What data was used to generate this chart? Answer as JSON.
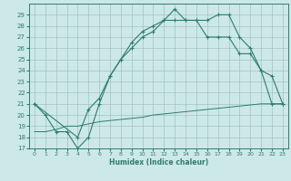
{
  "line1_x": [
    0,
    1,
    2,
    3,
    4,
    5,
    6,
    7,
    8,
    9,
    10,
    11,
    12,
    13,
    14,
    15,
    16,
    17,
    18,
    19,
    20,
    21,
    22,
    23
  ],
  "line1_y": [
    21,
    20,
    18.5,
    18.5,
    17,
    18,
    21,
    23.5,
    25,
    26.5,
    27.5,
    28.0,
    28.5,
    29.5,
    28.5,
    28.5,
    28.5,
    29,
    29,
    27.0,
    26,
    24,
    21,
    21
  ],
  "line2_x": [
    0,
    4,
    5,
    6,
    7,
    8,
    9,
    10,
    11,
    12,
    13,
    14,
    15,
    16,
    17,
    18,
    19,
    20,
    21,
    22,
    23
  ],
  "line2_y": [
    21,
    18,
    20.5,
    21.5,
    23.5,
    25,
    26,
    27,
    27.5,
    28.5,
    28.5,
    28.5,
    28.5,
    27,
    27,
    27,
    25.5,
    25.5,
    24,
    23.5,
    21
  ],
  "line3_x": [
    0,
    1,
    2,
    3,
    4,
    5,
    6,
    7,
    8,
    9,
    10,
    11,
    12,
    13,
    14,
    15,
    16,
    17,
    18,
    19,
    20,
    21,
    22,
    23
  ],
  "line3_y": [
    18.5,
    18.5,
    18.7,
    19.0,
    19.0,
    19.2,
    19.4,
    19.5,
    19.6,
    19.7,
    19.8,
    20.0,
    20.1,
    20.2,
    20.3,
    20.4,
    20.5,
    20.6,
    20.7,
    20.8,
    20.9,
    21.0,
    21.0,
    21.0
  ],
  "color": "#2e7d6e",
  "bg_color": "#cce8e8",
  "grid_color": "#99bbbb",
  "xlabel": "Humidex (Indice chaleur)",
  "xlim": [
    -0.5,
    23.5
  ],
  "ylim": [
    17,
    30
  ],
  "yticks": [
    17,
    18,
    19,
    20,
    21,
    22,
    23,
    24,
    25,
    26,
    27,
    28,
    29
  ],
  "xticks": [
    0,
    1,
    2,
    3,
    4,
    5,
    6,
    7,
    8,
    9,
    10,
    11,
    12,
    13,
    14,
    15,
    16,
    17,
    18,
    19,
    20,
    21,
    22,
    23
  ]
}
